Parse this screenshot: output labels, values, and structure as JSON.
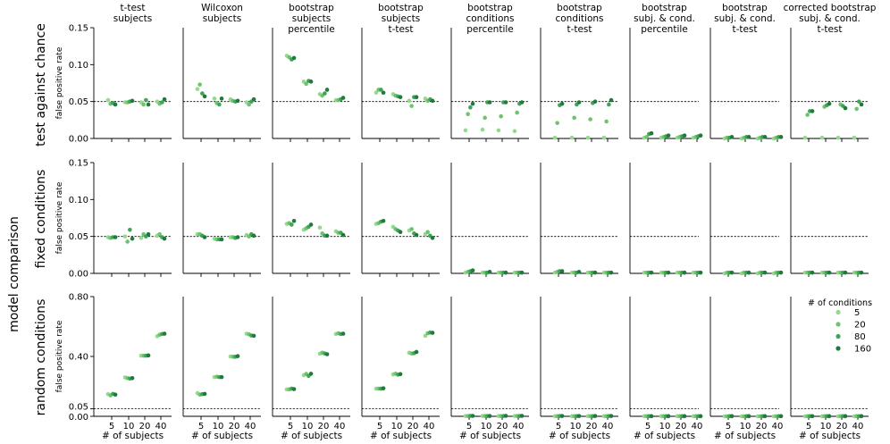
{
  "figure": {
    "row_group_label": "model comparison",
    "x_axis_label": "# of subjects",
    "y_axis_label": "false positive rate"
  },
  "legend": {
    "title": "# of conditions",
    "entries": [
      "5",
      "20",
      "80",
      "160"
    ]
  },
  "colors": {
    "5": "#95d88e",
    "20": "#6cc46d",
    "80": "#3fa35a",
    "160": "#1f7a3c",
    "reference_line": "#000000"
  },
  "chart_data": {
    "type": "scatter",
    "x_categories": [
      "5",
      "10",
      "20",
      "40"
    ],
    "condition_levels": [
      "5",
      "20",
      "80",
      "160"
    ],
    "columns": [
      "t-test\nsubjects",
      "Wilcoxon\nsubjects",
      "bootstrap\nsubjects\npercentile",
      "bootstrap\nsubjects\nt-test",
      "bootstrap\nconditions\npercentile",
      "bootstrap\nconditions\nt-test",
      "bootstrap\nsubj. & cond.\npercentile",
      "bootstrap\nsubj. & cond.\nt-test",
      "corrected bootstrap\nsubj. & cond.\nt-test"
    ],
    "rows": [
      {
        "label": "test against chance",
        "ylim": [
          0,
          0.15
        ],
        "yticks": [
          "0.00",
          "0.05",
          "0.10",
          "0.15"
        ],
        "ytick_values": [
          0,
          0.05,
          0.1,
          0.15
        ],
        "reference_line": 0.05,
        "panels": [
          [
            [
              0.052,
              0.047,
              0.048,
              0.046
            ],
            [
              0.049,
              0.049,
              0.05,
              0.051
            ],
            [
              0.049,
              0.046,
              0.052,
              0.046
            ],
            [
              0.05,
              0.047,
              0.049,
              0.053
            ]
          ],
          [
            [
              0.067,
              0.073,
              0.061,
              0.057
            ],
            [
              0.054,
              0.048,
              0.046,
              0.054
            ],
            [
              0.053,
              0.051,
              0.05,
              0.051
            ],
            [
              0.049,
              0.046,
              0.05,
              0.053
            ]
          ],
          [
            [
              0.112,
              0.11,
              0.107,
              0.109
            ],
            [
              0.077,
              0.074,
              0.078,
              0.077
            ],
            [
              0.06,
              0.058,
              0.061,
              0.066
            ],
            [
              0.052,
              0.052,
              0.053,
              0.055
            ]
          ],
          [
            [
              0.062,
              0.066,
              0.066,
              0.062
            ],
            [
              0.06,
              0.058,
              0.057,
              0.056
            ],
            [
              0.051,
              0.044,
              0.056,
              0.056
            ],
            [
              0.054,
              0.051,
              0.053,
              0.051
            ]
          ],
          [
            [
              0.011,
              0.033,
              0.042,
              0.047
            ],
            [
              0.012,
              0.028,
              0.049,
              0.049
            ],
            [
              0.011,
              0.03,
              0.049,
              0.049
            ],
            [
              0.01,
              0.035,
              0.047,
              0.049
            ]
          ],
          [
            [
              0.001,
              0.021,
              0.045,
              0.047
            ],
            [
              0.001,
              0.028,
              0.046,
              0.049
            ],
            [
              0.001,
              0.026,
              0.048,
              0.05
            ],
            [
              0.001,
              0.023,
              0.046,
              0.052
            ]
          ],
          [
            [
              0.001,
              0.002,
              0.006,
              0.007
            ],
            [
              0.001,
              0.002,
              0.003,
              0.004
            ],
            [
              0.001,
              0.002,
              0.003,
              0.004
            ],
            [
              0.001,
              0.002,
              0.003,
              0.004
            ]
          ],
          [
            [
              0.0,
              0.001,
              0.001,
              0.002
            ],
            [
              0.0,
              0.001,
              0.002,
              0.002
            ],
            [
              0.0,
              0.001,
              0.002,
              0.002
            ],
            [
              0.0,
              0.001,
              0.002,
              0.002
            ]
          ],
          [
            [
              0.001,
              0.032,
              0.037,
              0.037
            ],
            [
              0.001,
              0.043,
              0.045,
              0.047
            ],
            [
              0.001,
              0.046,
              0.044,
              0.041
            ],
            [
              0.001,
              0.04,
              0.05,
              0.046
            ]
          ]
        ]
      },
      {
        "label": "fixed conditions",
        "ylim": [
          0,
          0.15
        ],
        "yticks": [
          "0.00",
          "0.05",
          "0.10",
          "0.15"
        ],
        "ytick_values": [
          0,
          0.05,
          0.1,
          0.15
        ],
        "reference_line": 0.05,
        "panels": [
          [
            [
              0.049,
              0.048,
              0.049,
              0.049
            ],
            [
              0.05,
              0.043,
              0.059,
              0.047
            ],
            [
              0.048,
              0.053,
              0.05,
              0.053
            ],
            [
              0.051,
              0.053,
              0.049,
              0.047
            ]
          ],
          [
            [
              0.053,
              0.053,
              0.051,
              0.049
            ],
            [
              0.047,
              0.046,
              0.046,
              0.046
            ],
            [
              0.049,
              0.049,
              0.048,
              0.049
            ],
            [
              0.052,
              0.05,
              0.053,
              0.051
            ]
          ],
          [
            [
              0.067,
              0.068,
              0.066,
              0.071
            ],
            [
              0.059,
              0.061,
              0.063,
              0.066
            ],
            [
              0.062,
              0.054,
              0.051,
              0.051
            ],
            [
              0.057,
              0.055,
              0.055,
              0.052
            ]
          ],
          [
            [
              0.067,
              0.068,
              0.07,
              0.071
            ],
            [
              0.063,
              0.06,
              0.058,
              0.056
            ],
            [
              0.058,
              0.06,
              0.054,
              0.052
            ],
            [
              0.053,
              0.056,
              0.051,
              0.048
            ]
          ],
          [
            [
              0.001,
              0.002,
              0.003,
              0.004
            ],
            [
              0.001,
              0.001,
              0.001,
              0.002
            ],
            [
              0.001,
              0.001,
              0.001,
              0.001
            ],
            [
              0.001,
              0.001,
              0.001,
              0.001
            ]
          ],
          [
            [
              0.001,
              0.002,
              0.003,
              0.003
            ],
            [
              0.001,
              0.001,
              0.001,
              0.002
            ],
            [
              0.001,
              0.001,
              0.001,
              0.001
            ],
            [
              0.001,
              0.001,
              0.001,
              0.001
            ]
          ],
          [
            [
              0.001,
              0.001,
              0.001,
              0.001
            ],
            [
              0.001,
              0.001,
              0.001,
              0.001
            ],
            [
              0.001,
              0.001,
              0.001,
              0.001
            ],
            [
              0.001,
              0.001,
              0.001,
              0.001
            ]
          ],
          [
            [
              0.0,
              0.001,
              0.001,
              0.001
            ],
            [
              0.0,
              0.001,
              0.001,
              0.001
            ],
            [
              0.0,
              0.001,
              0.001,
              0.001
            ],
            [
              0.0,
              0.001,
              0.001,
              0.001
            ]
          ],
          [
            [
              0.001,
              0.001,
              0.001,
              0.001
            ],
            [
              0.001,
              0.001,
              0.001,
              0.001
            ],
            [
              0.001,
              0.001,
              0.001,
              0.001
            ],
            [
              0.001,
              0.001,
              0.001,
              0.001
            ]
          ]
        ]
      },
      {
        "label": "random conditions",
        "ylim": [
          0,
          0.8
        ],
        "yticks": [
          "0.00",
          "0.05",
          "0.40",
          "0.80"
        ],
        "ytick_values": [
          0,
          0.05,
          0.4,
          0.8
        ],
        "reference_line": 0.05,
        "panels": [
          [
            [
              0.148,
              0.14,
              0.15,
              0.145
            ],
            [
              0.26,
              0.255,
              0.252,
              0.255
            ],
            [
              0.405,
              0.405,
              0.405,
              0.407
            ],
            [
              0.535,
              0.545,
              0.55,
              0.552
            ]
          ],
          [
            [
              0.155,
              0.145,
              0.148,
              0.15
            ],
            [
              0.262,
              0.265,
              0.262,
              0.262
            ],
            [
              0.4,
              0.398,
              0.398,
              0.402
            ],
            [
              0.552,
              0.548,
              0.54,
              0.538
            ]
          ],
          [
            [
              0.18,
              0.18,
              0.185,
              0.182
            ],
            [
              0.275,
              0.283,
              0.27,
              0.284
            ],
            [
              0.418,
              0.425,
              0.42,
              0.415
            ],
            [
              0.55,
              0.555,
              0.55,
              0.552
            ]
          ],
          [
            [
              0.185,
              0.185,
              0.185,
              0.187
            ],
            [
              0.28,
              0.285,
              0.278,
              0.282
            ],
            [
              0.425,
              0.42,
              0.422,
              0.43
            ],
            [
              0.538,
              0.555,
              0.56,
              0.558
            ]
          ],
          [
            [
              0.002,
              0.002,
              0.003,
              0.003
            ],
            [
              0.002,
              0.002,
              0.002,
              0.002
            ],
            [
              0.002,
              0.002,
              0.002,
              0.003
            ],
            [
              0.002,
              0.002,
              0.002,
              0.003
            ]
          ],
          [
            [
              0.001,
              0.001,
              0.002,
              0.002
            ],
            [
              0.001,
              0.001,
              0.001,
              0.002
            ],
            [
              0.001,
              0.001,
              0.001,
              0.002
            ],
            [
              0.001,
              0.001,
              0.002,
              0.002
            ]
          ],
          [
            [
              0.001,
              0.001,
              0.001,
              0.001
            ],
            [
              0.001,
              0.001,
              0.001,
              0.001
            ],
            [
              0.001,
              0.001,
              0.001,
              0.001
            ],
            [
              0.001,
              0.001,
              0.001,
              0.001
            ]
          ],
          [
            [
              0.0,
              0.0,
              0.001,
              0.001
            ],
            [
              0.0,
              0.0,
              0.001,
              0.001
            ],
            [
              0.0,
              0.0,
              0.001,
              0.001
            ],
            [
              0.0,
              0.0,
              0.001,
              0.001
            ]
          ],
          [
            [
              0.0,
              0.001,
              0.001,
              0.001
            ],
            [
              0.0,
              0.001,
              0.001,
              0.001
            ],
            [
              0.0,
              0.001,
              0.001,
              0.001
            ],
            [
              0.0,
              0.001,
              0.001,
              0.001
            ]
          ]
        ]
      }
    ]
  }
}
